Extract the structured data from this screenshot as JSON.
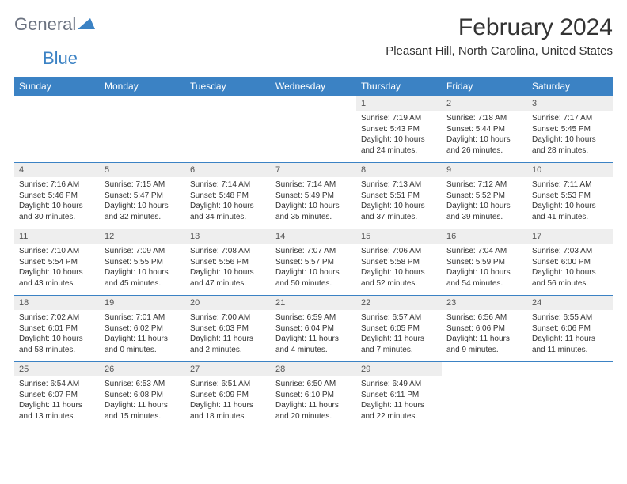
{
  "logo": {
    "general": "General",
    "blue": "Blue"
  },
  "title": "February 2024",
  "location": "Pleasant Hill, North Carolina, United States",
  "colors": {
    "header_bg": "#3b82c4",
    "header_text": "#ffffff",
    "daynum_bg": "#eeeeee",
    "border": "#3b82c4",
    "text": "#333333",
    "logo_gray": "#6b7280",
    "logo_blue": "#3b82c4",
    "background": "#ffffff"
  },
  "typography": {
    "title_fontsize": 30,
    "location_fontsize": 15,
    "header_fontsize": 12,
    "daynum_fontsize": 11,
    "body_fontsize": 10
  },
  "weekdays": [
    "Sunday",
    "Monday",
    "Tuesday",
    "Wednesday",
    "Thursday",
    "Friday",
    "Saturday"
  ],
  "weeks": [
    [
      {
        "day": "",
        "sunrise": "",
        "sunset": "",
        "daylight": ""
      },
      {
        "day": "",
        "sunrise": "",
        "sunset": "",
        "daylight": ""
      },
      {
        "day": "",
        "sunrise": "",
        "sunset": "",
        "daylight": ""
      },
      {
        "day": "",
        "sunrise": "",
        "sunset": "",
        "daylight": ""
      },
      {
        "day": "1",
        "sunrise": "Sunrise: 7:19 AM",
        "sunset": "Sunset: 5:43 PM",
        "daylight": "Daylight: 10 hours and 24 minutes."
      },
      {
        "day": "2",
        "sunrise": "Sunrise: 7:18 AM",
        "sunset": "Sunset: 5:44 PM",
        "daylight": "Daylight: 10 hours and 26 minutes."
      },
      {
        "day": "3",
        "sunrise": "Sunrise: 7:17 AM",
        "sunset": "Sunset: 5:45 PM",
        "daylight": "Daylight: 10 hours and 28 minutes."
      }
    ],
    [
      {
        "day": "4",
        "sunrise": "Sunrise: 7:16 AM",
        "sunset": "Sunset: 5:46 PM",
        "daylight": "Daylight: 10 hours and 30 minutes."
      },
      {
        "day": "5",
        "sunrise": "Sunrise: 7:15 AM",
        "sunset": "Sunset: 5:47 PM",
        "daylight": "Daylight: 10 hours and 32 minutes."
      },
      {
        "day": "6",
        "sunrise": "Sunrise: 7:14 AM",
        "sunset": "Sunset: 5:48 PM",
        "daylight": "Daylight: 10 hours and 34 minutes."
      },
      {
        "day": "7",
        "sunrise": "Sunrise: 7:14 AM",
        "sunset": "Sunset: 5:49 PM",
        "daylight": "Daylight: 10 hours and 35 minutes."
      },
      {
        "day": "8",
        "sunrise": "Sunrise: 7:13 AM",
        "sunset": "Sunset: 5:51 PM",
        "daylight": "Daylight: 10 hours and 37 minutes."
      },
      {
        "day": "9",
        "sunrise": "Sunrise: 7:12 AM",
        "sunset": "Sunset: 5:52 PM",
        "daylight": "Daylight: 10 hours and 39 minutes."
      },
      {
        "day": "10",
        "sunrise": "Sunrise: 7:11 AM",
        "sunset": "Sunset: 5:53 PM",
        "daylight": "Daylight: 10 hours and 41 minutes."
      }
    ],
    [
      {
        "day": "11",
        "sunrise": "Sunrise: 7:10 AM",
        "sunset": "Sunset: 5:54 PM",
        "daylight": "Daylight: 10 hours and 43 minutes."
      },
      {
        "day": "12",
        "sunrise": "Sunrise: 7:09 AM",
        "sunset": "Sunset: 5:55 PM",
        "daylight": "Daylight: 10 hours and 45 minutes."
      },
      {
        "day": "13",
        "sunrise": "Sunrise: 7:08 AM",
        "sunset": "Sunset: 5:56 PM",
        "daylight": "Daylight: 10 hours and 47 minutes."
      },
      {
        "day": "14",
        "sunrise": "Sunrise: 7:07 AM",
        "sunset": "Sunset: 5:57 PM",
        "daylight": "Daylight: 10 hours and 50 minutes."
      },
      {
        "day": "15",
        "sunrise": "Sunrise: 7:06 AM",
        "sunset": "Sunset: 5:58 PM",
        "daylight": "Daylight: 10 hours and 52 minutes."
      },
      {
        "day": "16",
        "sunrise": "Sunrise: 7:04 AM",
        "sunset": "Sunset: 5:59 PM",
        "daylight": "Daylight: 10 hours and 54 minutes."
      },
      {
        "day": "17",
        "sunrise": "Sunrise: 7:03 AM",
        "sunset": "Sunset: 6:00 PM",
        "daylight": "Daylight: 10 hours and 56 minutes."
      }
    ],
    [
      {
        "day": "18",
        "sunrise": "Sunrise: 7:02 AM",
        "sunset": "Sunset: 6:01 PM",
        "daylight": "Daylight: 10 hours and 58 minutes."
      },
      {
        "day": "19",
        "sunrise": "Sunrise: 7:01 AM",
        "sunset": "Sunset: 6:02 PM",
        "daylight": "Daylight: 11 hours and 0 minutes."
      },
      {
        "day": "20",
        "sunrise": "Sunrise: 7:00 AM",
        "sunset": "Sunset: 6:03 PM",
        "daylight": "Daylight: 11 hours and 2 minutes."
      },
      {
        "day": "21",
        "sunrise": "Sunrise: 6:59 AM",
        "sunset": "Sunset: 6:04 PM",
        "daylight": "Daylight: 11 hours and 4 minutes."
      },
      {
        "day": "22",
        "sunrise": "Sunrise: 6:57 AM",
        "sunset": "Sunset: 6:05 PM",
        "daylight": "Daylight: 11 hours and 7 minutes."
      },
      {
        "day": "23",
        "sunrise": "Sunrise: 6:56 AM",
        "sunset": "Sunset: 6:06 PM",
        "daylight": "Daylight: 11 hours and 9 minutes."
      },
      {
        "day": "24",
        "sunrise": "Sunrise: 6:55 AM",
        "sunset": "Sunset: 6:06 PM",
        "daylight": "Daylight: 11 hours and 11 minutes."
      }
    ],
    [
      {
        "day": "25",
        "sunrise": "Sunrise: 6:54 AM",
        "sunset": "Sunset: 6:07 PM",
        "daylight": "Daylight: 11 hours and 13 minutes."
      },
      {
        "day": "26",
        "sunrise": "Sunrise: 6:53 AM",
        "sunset": "Sunset: 6:08 PM",
        "daylight": "Daylight: 11 hours and 15 minutes."
      },
      {
        "day": "27",
        "sunrise": "Sunrise: 6:51 AM",
        "sunset": "Sunset: 6:09 PM",
        "daylight": "Daylight: 11 hours and 18 minutes."
      },
      {
        "day": "28",
        "sunrise": "Sunrise: 6:50 AM",
        "sunset": "Sunset: 6:10 PM",
        "daylight": "Daylight: 11 hours and 20 minutes."
      },
      {
        "day": "29",
        "sunrise": "Sunrise: 6:49 AM",
        "sunset": "Sunset: 6:11 PM",
        "daylight": "Daylight: 11 hours and 22 minutes."
      },
      {
        "day": "",
        "sunrise": "",
        "sunset": "",
        "daylight": ""
      },
      {
        "day": "",
        "sunrise": "",
        "sunset": "",
        "daylight": ""
      }
    ]
  ]
}
